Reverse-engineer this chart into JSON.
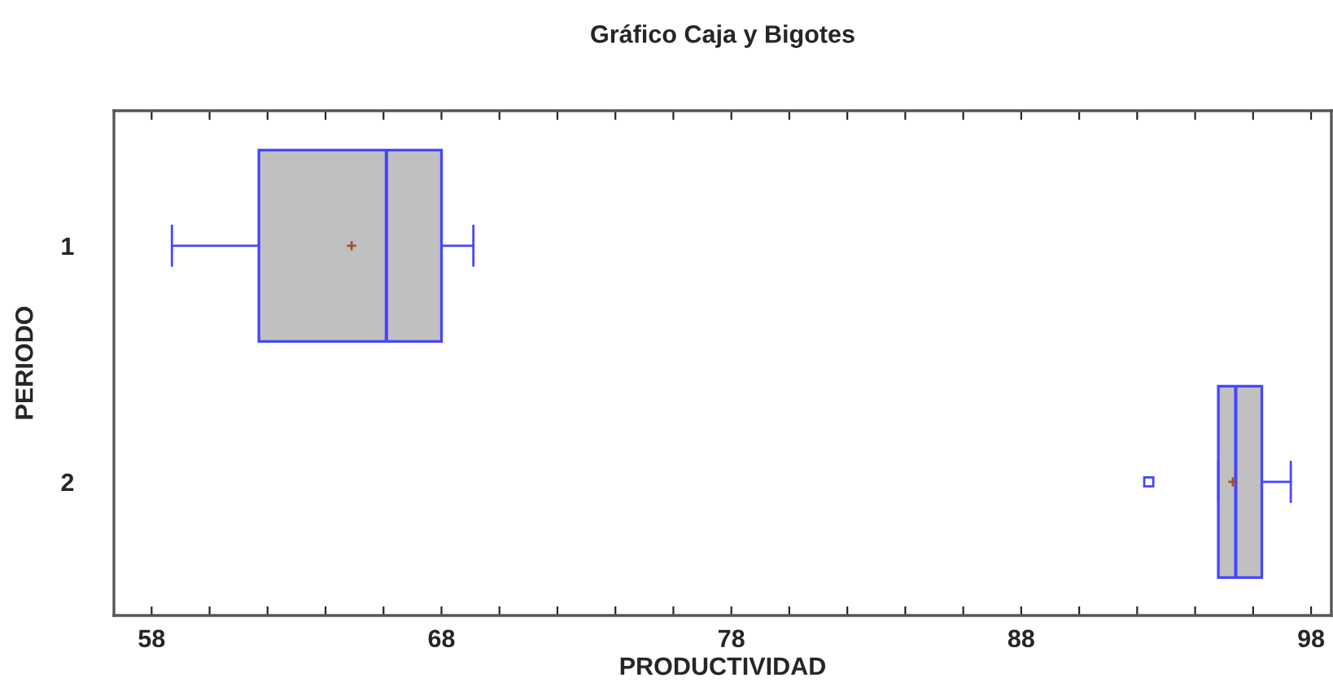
{
  "chart_data": {
    "type": "box",
    "title": "Gráfico Caja y Bigotes",
    "xlabel": "PRODUCTIVIDAD",
    "ylabel": "PERIODO",
    "orientation": "horizontal",
    "categories": [
      "1",
      "2"
    ],
    "boxes": [
      {
        "low": 58.7,
        "q1": 61.7,
        "median": 66.1,
        "q3": 68.0,
        "high": 69.1,
        "mean": 64.9
      },
      {
        "low": 94.8,
        "q1": 94.8,
        "median": 95.4,
        "q3": 96.3,
        "high": 97.3,
        "mean": 95.3,
        "outliers": [
          92.4
        ]
      }
    ],
    "color": "#c0c0c0",
    "xlim": [
      56.7,
      98.7
    ],
    "xticks": [
      58,
      {
        "value": 60,
        "label": null
      },
      {
        "value": 62,
        "label": null
      },
      {
        "value": 64,
        "label": null
      },
      {
        "value": 66,
        "label": null
      },
      68,
      {
        "value": 70,
        "label": null
      },
      {
        "value": 72,
        "label": null
      },
      {
        "value": 74,
        "label": null
      },
      {
        "value": 76,
        "label": null
      },
      78,
      {
        "value": 80,
        "label": null
      },
      {
        "value": 82,
        "label": null
      },
      {
        "value": 84,
        "label": null
      },
      {
        "value": 86,
        "label": null
      },
      88,
      {
        "value": 90,
        "label": null
      },
      {
        "value": 92,
        "label": null
      },
      {
        "value": 94,
        "label": null
      },
      {
        "value": 96,
        "label": null
      },
      98
    ],
    "grid": false,
    "legend": false
  }
}
